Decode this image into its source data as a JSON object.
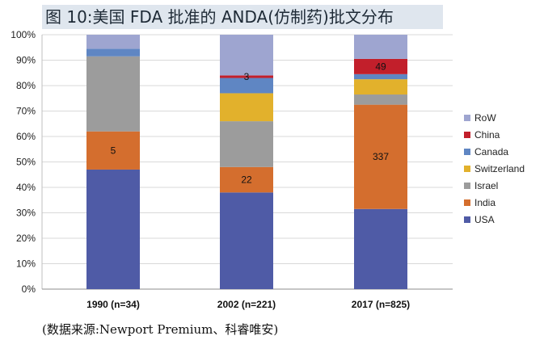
{
  "title": "图 10:美国 FDA 批准的 ANDA(仿制药)批文分布",
  "source": "(数据来源:Newport Premium、科睿唯安)",
  "colors": {
    "USA": "#4f5ba6",
    "India": "#d46e2e",
    "Israel": "#9c9c9c",
    "Switzerland": "#e2b12c",
    "Canada": "#5f86c3",
    "China": "#c21f2b",
    "RoW": "#9ea5d0",
    "title_background": "#dfe6ee"
  },
  "chart_data": {
    "type": "bar",
    "stacked": true,
    "percent_stacked": true,
    "categories": [
      "1990 (n=34)",
      "2002 (n=221)",
      "2017 (n=825)"
    ],
    "yticks": [
      "0%",
      "10%",
      "20%",
      "30%",
      "40%",
      "50%",
      "60%",
      "70%",
      "80%",
      "90%",
      "100%"
    ],
    "ylim": [
      0,
      100
    ],
    "legend_position": "right",
    "legend_order": [
      "RoW",
      "China",
      "Canada",
      "Switzerland",
      "Israel",
      "India",
      "USA"
    ],
    "series": [
      {
        "name": "USA",
        "values": [
          47,
          38,
          31.5
        ]
      },
      {
        "name": "India",
        "values": [
          15,
          10,
          41
        ]
      },
      {
        "name": "Israel",
        "values": [
          29.5,
          18,
          4
        ]
      },
      {
        "name": "Switzerland",
        "values": [
          0,
          11,
          6
        ]
      },
      {
        "name": "Canada",
        "values": [
          3,
          6,
          2
        ]
      },
      {
        "name": "China",
        "values": [
          0,
          1,
          6
        ]
      },
      {
        "name": "RoW",
        "values": [
          5.5,
          16,
          9.5
        ]
      }
    ],
    "data_labels": [
      {
        "series": "India",
        "category": "1990 (n=34)",
        "text": "5"
      },
      {
        "series": "India",
        "category": "2002 (n=221)",
        "text": "22"
      },
      {
        "series": "China",
        "category": "2002 (n=221)",
        "text": "3"
      },
      {
        "series": "India",
        "category": "2017 (n=825)",
        "text": "337"
      },
      {
        "series": "China",
        "category": "2017 (n=825)",
        "text": "49"
      }
    ]
  }
}
